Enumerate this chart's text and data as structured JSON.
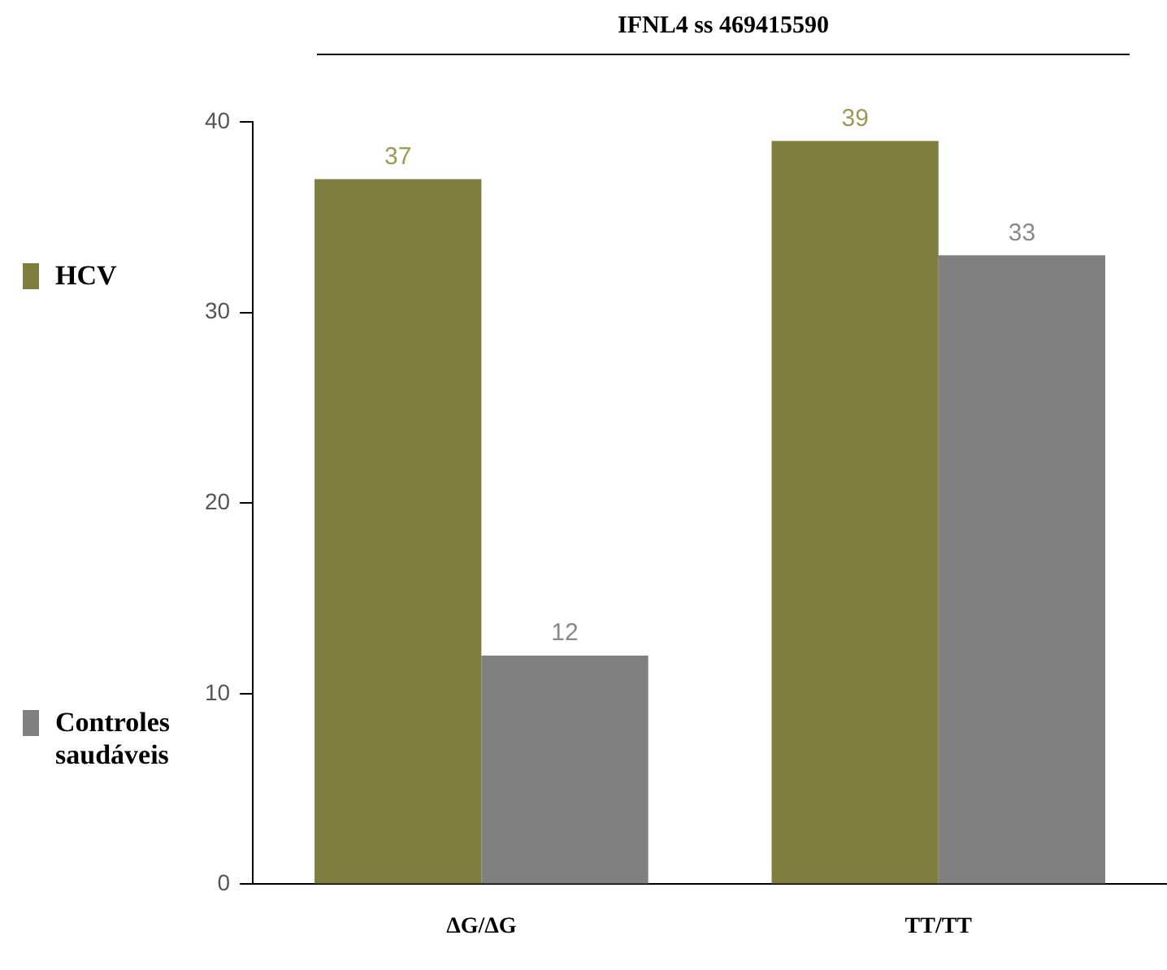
{
  "chart_data": {
    "type": "bar",
    "title": "IFNL4 ss 469415590",
    "categories": [
      "ΔG/ΔG",
      "TT/TT"
    ],
    "series": [
      {
        "name": "HCV",
        "color": "#7e7e3f",
        "values": [
          37,
          39
        ]
      },
      {
        "name": "Controles saudáveis",
        "color": "#808080",
        "values": [
          12,
          33
        ]
      }
    ],
    "ylim": [
      0,
      40
    ],
    "yticks": [
      0,
      10,
      20,
      30,
      40
    ],
    "grid": false,
    "legend": "left",
    "data_labels": true
  }
}
